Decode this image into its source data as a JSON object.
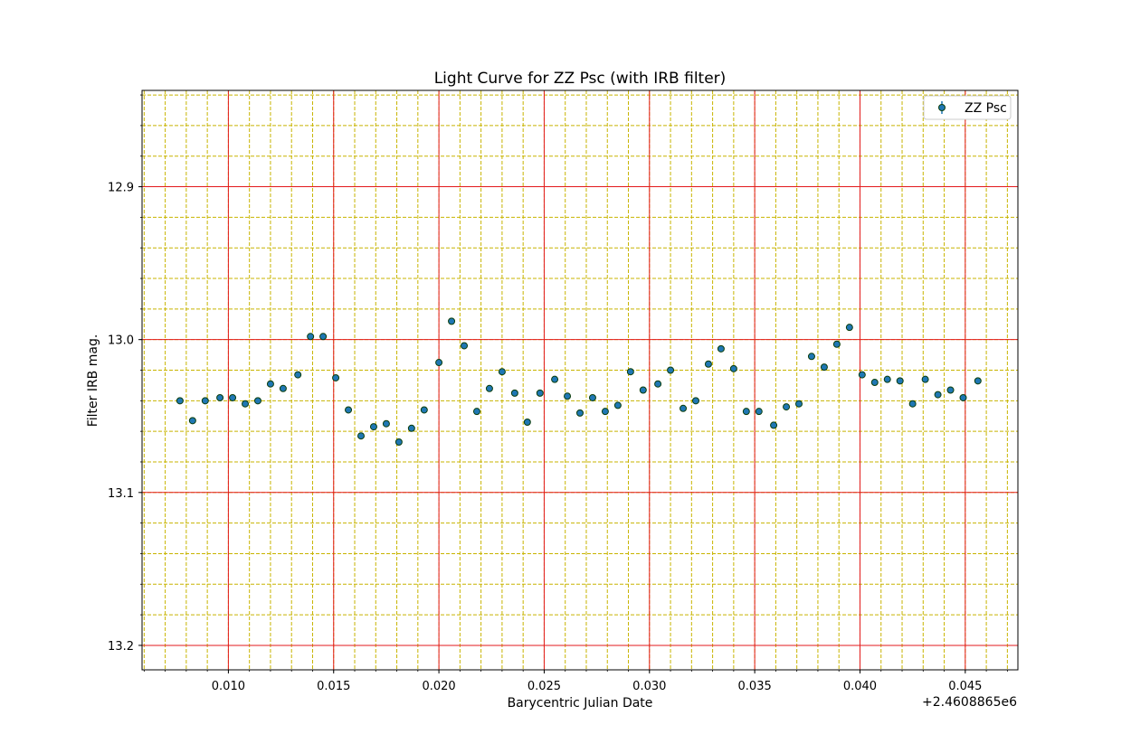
{
  "chart_data": {
    "type": "scatter",
    "title": "Light Curve for ZZ Psc (with IRB filter)",
    "xlabel": "Barycentric Julian Date",
    "ylabel": "Filter IRB mag.",
    "x_offset_label": "+2.4608865e6",
    "xlim": [
      0.0059,
      0.0475
    ],
    "ylim": [
      13.216,
      12.837
    ],
    "y_inverted": true,
    "xticks": [
      0.01,
      0.015,
      0.02,
      0.025,
      0.03,
      0.035,
      0.04,
      0.045
    ],
    "xtick_labels": [
      "0.010",
      "0.015",
      "0.020",
      "0.025",
      "0.030",
      "0.035",
      "0.040",
      "0.045"
    ],
    "yticks": [
      12.9,
      13.0,
      13.1,
      13.2
    ],
    "ytick_labels": [
      "12.9",
      "13.0",
      "13.1",
      "13.2"
    ],
    "x_minor_step": 0.001,
    "y_minor_step": 0.02,
    "grid": {
      "major": "on",
      "minor": "on",
      "major_color": "#e31a1c",
      "minor_color": "#c8b400"
    },
    "legend": {
      "position": "upper right",
      "entries": [
        "ZZ Psc"
      ]
    },
    "series": [
      {
        "name": "ZZ Psc",
        "marker_color": "#1f77b4",
        "edge_color": "#0b3d0b",
        "x": [
          0.0077,
          0.0083,
          0.0089,
          0.0096,
          0.0102,
          0.0108,
          0.0114,
          0.012,
          0.0126,
          0.0133,
          0.0139,
          0.0145,
          0.0151,
          0.0157,
          0.0163,
          0.0169,
          0.0175,
          0.0181,
          0.0187,
          0.0193,
          0.02,
          0.0206,
          0.0212,
          0.0218,
          0.0224,
          0.023,
          0.0236,
          0.0242,
          0.0248,
          0.0255,
          0.0261,
          0.0267,
          0.0273,
          0.0279,
          0.0285,
          0.0291,
          0.0297,
          0.0304,
          0.031,
          0.0316,
          0.0322,
          0.0328,
          0.0334,
          0.034,
          0.0346,
          0.0352,
          0.0359,
          0.0365,
          0.0371,
          0.0377,
          0.0383,
          0.0389,
          0.0395,
          0.0401,
          0.0407,
          0.0413,
          0.0419,
          0.0425,
          0.0431,
          0.0437,
          0.0443,
          0.0449,
          0.0456
        ],
        "y": [
          13.04,
          13.053,
          13.04,
          13.038,
          13.038,
          13.042,
          13.04,
          13.029,
          13.032,
          13.023,
          12.998,
          12.998,
          13.025,
          13.046,
          13.063,
          13.057,
          13.055,
          13.067,
          13.058,
          13.046,
          13.015,
          12.988,
          13.004,
          13.047,
          13.032,
          13.021,
          13.035,
          13.054,
          13.035,
          13.026,
          13.037,
          13.048,
          13.038,
          13.047,
          13.043,
          13.021,
          13.033,
          13.029,
          13.02,
          13.045,
          13.04,
          13.016,
          13.006,
          13.019,
          13.047,
          13.047,
          13.056,
          13.044,
          13.042,
          13.011,
          13.018,
          13.003,
          12.992,
          13.023,
          13.028,
          13.026,
          13.027,
          13.042,
          13.026,
          13.036,
          13.033,
          13.038,
          13.027
        ]
      }
    ]
  }
}
